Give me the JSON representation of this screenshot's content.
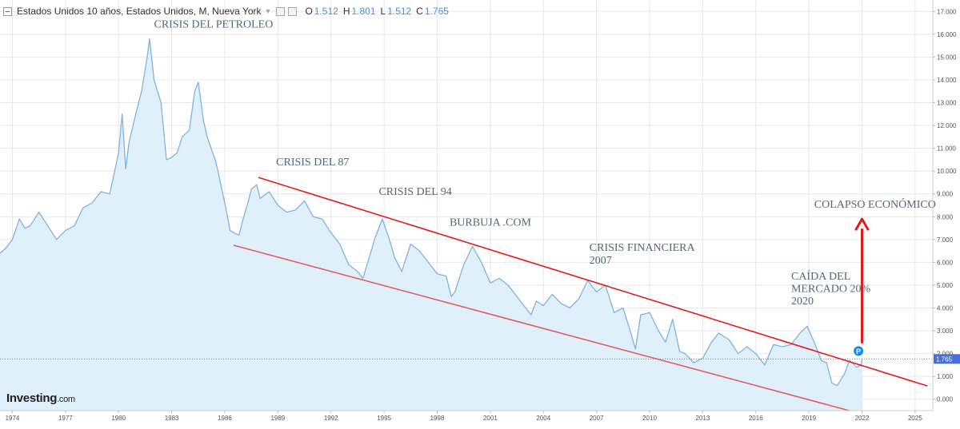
{
  "header": {
    "title": "Estados Unidos 10 años, Estados Unidos, M, Nueva York",
    "ohlc": [
      {
        "label": "O",
        "value": "1.512"
      },
      {
        "label": "H",
        "value": "1.801"
      },
      {
        "label": "L",
        "value": "1.512"
      },
      {
        "label": "C",
        "value": "1.765"
      }
    ]
  },
  "logo": {
    "brand": "Investing",
    "suffix": ".com"
  },
  "chart_data": {
    "type": "area",
    "xlabel": "",
    "ylabel": "",
    "xlim": [
      1973.3,
      2026.0
    ],
    "ylim": [
      -0.5,
      17.5
    ],
    "x_ticks": [
      "1974",
      "1977",
      "1980",
      "1983",
      "1986",
      "1989",
      "1992",
      "1995",
      "1998",
      "2001",
      "2004",
      "2007",
      "2010",
      "2013",
      "2016",
      "2019",
      "2022",
      "2025"
    ],
    "y_ticks": [
      "0.000",
      "1.000",
      "2.000",
      "3.000",
      "4.000",
      "5.000",
      "6.000",
      "7.000",
      "8.000",
      "9.000",
      "10.000",
      "11.000",
      "12.000",
      "13.000",
      "14.000",
      "15.000",
      "16.000",
      "17.000"
    ],
    "current_value": "1.765",
    "marker_label": "P",
    "series": [
      {
        "x": [
          1973.3,
          1973.6,
          1974.0,
          1974.4,
          1974.7,
          1975.0,
          1975.5,
          1976.0,
          1976.5,
          1977.0,
          1977.5,
          1978.0,
          1978.5,
          1979.0,
          1979.5,
          1980.0,
          1980.2,
          1980.4,
          1980.6,
          1981.0,
          1981.3,
          1981.6,
          1981.75,
          1982.0,
          1982.4,
          1982.7,
          1983.0,
          1983.3,
          1983.6,
          1984.0,
          1984.3,
          1984.5,
          1984.8,
          1985.0,
          1985.5,
          1986.0,
          1986.3,
          1986.5,
          1986.8,
          1987.0,
          1987.3,
          1987.5,
          1987.8,
          1988.0,
          1988.5,
          1989.0,
          1989.5,
          1990.0,
          1990.5,
          1991.0,
          1991.5,
          1992.0,
          1992.5,
          1993.0,
          1993.5,
          1993.8,
          1994.0,
          1994.5,
          1994.9,
          1995.3,
          1995.6,
          1996.0,
          1996.5,
          1997.0,
          1997.5,
          1998.0,
          1998.5,
          1998.8,
          1999.0,
          1999.5,
          2000.0,
          2000.5,
          2001.0,
          2001.5,
          2002.0,
          2002.5,
          2003.0,
          2003.3,
          2003.6,
          2004.0,
          2004.5,
          2005.0,
          2005.5,
          2006.0,
          2006.5,
          2007.0,
          2007.5,
          2008.0,
          2008.5,
          2008.9,
          2009.2,
          2009.5,
          2010.0,
          2010.5,
          2010.9,
          2011.3,
          2011.7,
          2012.0,
          2012.5,
          2013.0,
          2013.5,
          2013.9,
          2014.5,
          2015.0,
          2015.5,
          2016.0,
          2016.5,
          2017.0,
          2017.5,
          2018.0,
          2018.5,
          2018.9,
          2019.3,
          2019.7,
          2020.0,
          2020.3,
          2020.6,
          2021.0,
          2021.3,
          2021.7,
          2021.95,
          2022.0
        ],
        "values": [
          6.4,
          6.6,
          7.0,
          7.9,
          7.5,
          7.6,
          8.2,
          7.6,
          7.0,
          7.4,
          7.6,
          8.4,
          8.6,
          9.1,
          9.0,
          10.8,
          12.5,
          10.1,
          11.3,
          12.6,
          13.5,
          14.9,
          15.8,
          14.0,
          13.0,
          10.5,
          10.6,
          10.8,
          11.5,
          11.8,
          13.5,
          13.9,
          12.2,
          11.5,
          10.4,
          8.6,
          7.4,
          7.3,
          7.2,
          7.8,
          8.6,
          9.2,
          9.4,
          8.8,
          9.1,
          8.5,
          8.2,
          8.3,
          8.7,
          8.0,
          7.9,
          7.3,
          6.8,
          5.9,
          5.6,
          5.3,
          5.8,
          7.1,
          7.9,
          7.0,
          6.2,
          5.6,
          6.8,
          6.5,
          6.0,
          5.5,
          5.4,
          4.5,
          4.7,
          5.9,
          6.7,
          6.0,
          5.1,
          5.3,
          5.0,
          4.5,
          4.0,
          3.7,
          4.3,
          4.1,
          4.6,
          4.2,
          4.0,
          4.4,
          5.2,
          4.7,
          5.0,
          3.8,
          4.0,
          3.0,
          2.2,
          3.7,
          3.8,
          3.0,
          2.5,
          3.5,
          2.1,
          2.0,
          1.6,
          1.8,
          2.5,
          2.9,
          2.6,
          2.0,
          2.3,
          2.0,
          1.5,
          2.4,
          2.3,
          2.4,
          2.9,
          3.2,
          2.5,
          1.7,
          1.6,
          0.7,
          0.6,
          1.1,
          1.7,
          1.4,
          1.5,
          1.765
        ]
      }
    ],
    "trendlines": [
      {
        "from": [
          1987.9,
          9.72
        ],
        "to": [
          2025.7,
          0.58
        ],
        "color": "#e01b1b"
      },
      {
        "from": [
          1986.5,
          6.75
        ],
        "to": [
          2022.0,
          -0.65
        ],
        "color": "#e06060"
      }
    ],
    "annotations": [
      {
        "text": "CRISIS DEL PETROLEO",
        "x": 1982.0,
        "y": 16.3
      },
      {
        "text": "CRISIS DEL 87",
        "x": 1988.9,
        "y": 10.25
      },
      {
        "text": "CRISIS DEL 94",
        "x": 1994.7,
        "y": 8.95
      },
      {
        "text": "BURBUJA    .COM",
        "x": 1998.7,
        "y": 7.6
      },
      {
        "text": "CRISIS FINANCIERA",
        "x": 2006.6,
        "y": 6.5
      },
      {
        "text": "2007",
        "x": 2006.6,
        "y": 5.95
      },
      {
        "text": "COLAPSO ECONÓMICO",
        "x": 2019.3,
        "y": 8.4
      },
      {
        "text": "CAÍDA DEL",
        "x": 2018.0,
        "y": 5.25
      },
      {
        "text": "MERCADO 20%",
        "x": 2018.0,
        "y": 4.7
      },
      {
        "text": "2020",
        "x": 2018.0,
        "y": 4.15
      }
    ],
    "arrow": {
      "from": [
        2022.0,
        2.45
      ],
      "to": [
        2022.0,
        7.9
      ],
      "color": "#e01b1b"
    },
    "colors": {
      "line": "#7fb2e5",
      "fill": "#dff0fb",
      "grid": "#e8e8e8",
      "axis_text": "#555555",
      "annotation": "#556677",
      "price_box": "#4a6fd8"
    }
  }
}
